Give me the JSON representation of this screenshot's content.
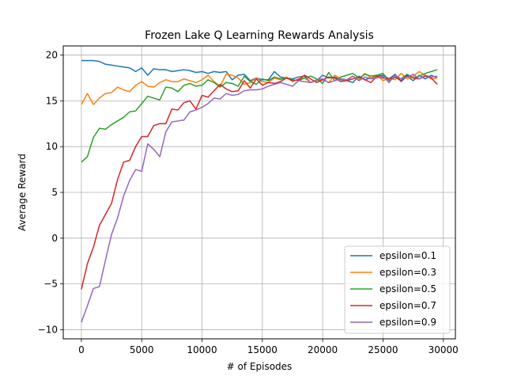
{
  "chart_data": {
    "type": "line",
    "title": "Frozen Lake Q Learning Rewards Analysis",
    "xlabel": "# of Episodes",
    "ylabel": "Average Reward",
    "xlim": [
      -1500,
      31000
    ],
    "ylim": [
      -11,
      21
    ],
    "xticks": [
      0,
      5000,
      10000,
      15000,
      20000,
      25000,
      30000
    ],
    "yticks": [
      -10,
      -5,
      0,
      5,
      10,
      15,
      20
    ],
    "grid": true,
    "legend_position": "lower-right",
    "x": [
      0,
      500,
      1000,
      1500,
      2000,
      2500,
      3000,
      3500,
      4000,
      4500,
      5000,
      5500,
      6000,
      6500,
      7000,
      7500,
      8000,
      8500,
      9000,
      9500,
      10000,
      10500,
      11000,
      11500,
      12000,
      12500,
      13000,
      13500,
      14000,
      14500,
      15000,
      15500,
      16000,
      16500,
      17000,
      17500,
      18000,
      18500,
      19000,
      19500,
      20000,
      20500,
      21000,
      21500,
      22000,
      22500,
      23000,
      23500,
      24000,
      24500,
      25000,
      25500,
      26000,
      26500,
      27000,
      27500,
      28000,
      28500,
      29000,
      29500
    ],
    "series": [
      {
        "name": "epsilon=0.1",
        "color": "#1f77b4",
        "values": [
          19.4,
          19.4,
          19.4,
          19.3,
          19.0,
          18.9,
          18.8,
          18.7,
          18.6,
          18.2,
          18.6,
          17.8,
          18.5,
          18.4,
          18.4,
          18.2,
          18.3,
          18.4,
          18.3,
          18.1,
          18.2,
          18.0,
          18.2,
          18.1,
          18.2,
          17.3,
          17.8,
          17.9,
          17.2,
          17.5,
          17.3,
          17.3,
          18.2,
          17.6,
          17.5,
          17.4,
          17.6,
          17.7,
          17.0,
          17.2,
          17.8,
          17.5,
          17.6,
          17.3,
          17.2,
          17.0,
          17.7,
          17.3,
          17.5,
          17.7,
          17.8,
          17.4,
          17.9,
          17.1,
          17.7,
          17.2,
          17.8,
          17.4,
          17.8,
          17.5
        ]
      },
      {
        "name": "epsilon=0.3",
        "color": "#ff7f0e",
        "values": [
          14.6,
          15.8,
          14.6,
          15.3,
          15.8,
          15.9,
          16.5,
          16.2,
          16.0,
          16.7,
          17.1,
          16.6,
          16.5,
          17.0,
          17.3,
          17.1,
          17.1,
          17.4,
          17.2,
          17.0,
          17.3,
          17.8,
          17.1,
          16.6,
          17.9,
          17.8,
          17.5,
          16.8,
          17.0,
          17.5,
          17.1,
          17.0,
          17.5,
          17.3,
          17.6,
          17.1,
          17.4,
          17.5,
          17.0,
          17.2,
          17.3,
          17.0,
          17.8,
          17.4,
          17.2,
          17.7,
          17.3,
          18.0,
          17.5,
          17.8,
          17.2,
          17.5,
          17.3,
          18.0,
          17.4,
          17.7,
          18.2,
          17.8,
          17.4,
          17.5
        ]
      },
      {
        "name": "epsilon=0.5",
        "color": "#2ca02c",
        "values": [
          8.3,
          8.9,
          11.0,
          12.0,
          11.9,
          12.4,
          12.8,
          13.2,
          13.8,
          13.9,
          14.7,
          15.5,
          15.3,
          15.1,
          16.5,
          16.4,
          16.0,
          16.7,
          16.9,
          16.6,
          16.7,
          17.3,
          17.0,
          16.5,
          17.0,
          16.9,
          16.6,
          17.7,
          17.1,
          16.8,
          17.4,
          17.2,
          17.6,
          17.4,
          17.5,
          17.3,
          17.2,
          17.5,
          17.7,
          17.4,
          16.9,
          18.1,
          17.2,
          17.6,
          17.8,
          18.0,
          17.5,
          17.9,
          17.7,
          17.8,
          18.0,
          17.2,
          17.6,
          17.4,
          17.9,
          17.5,
          17.7,
          18.0,
          18.2,
          18.4
        ]
      },
      {
        "name": "epsilon=0.7",
        "color": "#d62728",
        "values": [
          -5.6,
          -2.8,
          -1.0,
          1.4,
          2.6,
          3.8,
          6.4,
          8.3,
          8.5,
          10.0,
          11.1,
          11.1,
          12.3,
          12.5,
          12.5,
          14.1,
          14.0,
          14.8,
          15.0,
          14.1,
          15.6,
          15.4,
          16.1,
          16.8,
          16.3,
          16.0,
          16.1,
          17.2,
          16.4,
          17.4,
          16.7,
          17.0,
          16.9,
          17.1,
          17.5,
          17.2,
          17.3,
          17.8,
          17.4,
          17.0,
          17.3,
          17.6,
          17.5,
          17.1,
          17.2,
          17.4,
          17.6,
          17.3,
          17.0,
          17.7,
          17.5,
          17.4,
          17.6,
          17.2,
          17.8,
          17.5,
          17.4,
          17.7,
          17.5,
          16.8
        ]
      },
      {
        "name": "epsilon=0.9",
        "color": "#9467bd",
        "values": [
          -9.2,
          -7.4,
          -5.5,
          -5.3,
          -2.4,
          0.4,
          2.2,
          4.6,
          6.3,
          7.5,
          7.3,
          10.3,
          9.7,
          8.9,
          11.6,
          12.7,
          12.8,
          12.9,
          13.8,
          14.0,
          14.3,
          14.7,
          15.3,
          15.2,
          15.8,
          15.6,
          15.7,
          16.1,
          16.2,
          16.2,
          16.3,
          16.6,
          16.8,
          17.0,
          16.8,
          16.6,
          17.2,
          17.1,
          17.0,
          17.3,
          17.4,
          17.0,
          17.2,
          17.4,
          17.3,
          17.7,
          17.2,
          17.6,
          17.4,
          17.5,
          17.7,
          17.0,
          17.8,
          17.4,
          17.6,
          17.9,
          17.4,
          17.8,
          17.6,
          17.7
        ]
      }
    ]
  }
}
